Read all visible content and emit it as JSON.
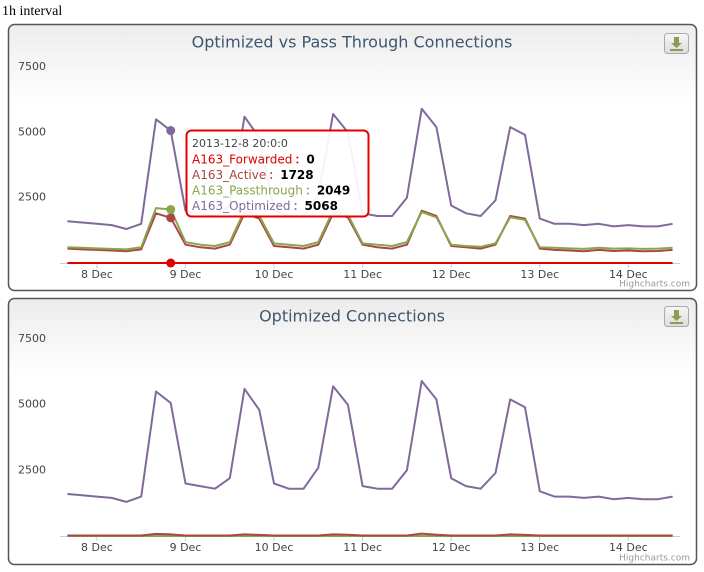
{
  "caption": "1h interval",
  "chart_data": [
    {
      "type": "line",
      "title": "Optimized vs Pass Through Connections",
      "credits": "Highcharts.com",
      "x": [
        "2013-12-07 16:00",
        "2013-12-07 20:00",
        "2013-12-08 00:00",
        "2013-12-08 04:00",
        "2013-12-08 08:00",
        "2013-12-08 12:00",
        "2013-12-08 16:00",
        "2013-12-08 20:00",
        "2013-12-09 00:00",
        "2013-12-09 04:00",
        "2013-12-09 08:00",
        "2013-12-09 12:00",
        "2013-12-09 16:00",
        "2013-12-09 20:00",
        "2013-12-10 00:00",
        "2013-12-10 04:00",
        "2013-12-10 08:00",
        "2013-12-10 12:00",
        "2013-12-10 16:00",
        "2013-12-10 20:00",
        "2013-12-11 00:00",
        "2013-12-11 04:00",
        "2013-12-11 08:00",
        "2013-12-11 12:00",
        "2013-12-11 16:00",
        "2013-12-11 20:00",
        "2013-12-12 00:00",
        "2013-12-12 04:00",
        "2013-12-12 08:00",
        "2013-12-12 12:00",
        "2013-12-12 16:00",
        "2013-12-12 20:00",
        "2013-12-13 00:00",
        "2013-12-13 04:00",
        "2013-12-13 08:00",
        "2013-12-13 12:00",
        "2013-12-13 16:00",
        "2013-12-13 20:00",
        "2013-12-14 00:00",
        "2013-12-14 04:00",
        "2013-12-14 08:00",
        "2013-12-14 12:00"
      ],
      "xlim": [
        "2013-12-07 14:00",
        "2013-12-14 14:00"
      ],
      "xticks": [
        {
          "value": "2013-12-08 00:00",
          "label": "8 Dec"
        },
        {
          "value": "2013-12-09 00:00",
          "label": "9 Dec"
        },
        {
          "value": "2013-12-10 00:00",
          "label": "10 Dec"
        },
        {
          "value": "2013-12-11 00:00",
          "label": "11 Dec"
        },
        {
          "value": "2013-12-12 00:00",
          "label": "12 Dec"
        },
        {
          "value": "2013-12-13 00:00",
          "label": "13 Dec"
        },
        {
          "value": "2013-12-14 00:00",
          "label": "14 Dec"
        }
      ],
      "ylim": [
        0,
        7500
      ],
      "yticks": [
        2500,
        5000,
        7500
      ],
      "grid": false,
      "tooltip": {
        "header": "2013-12-8 20:0:0"
      },
      "series": [
        {
          "name": "A163_Forwarded",
          "color": "#e00000",
          "values": [
            0,
            0,
            0,
            0,
            0,
            0,
            0,
            0,
            0,
            0,
            0,
            0,
            0,
            0,
            0,
            0,
            0,
            0,
            0,
            0,
            0,
            0,
            0,
            0,
            0,
            0,
            0,
            0,
            0,
            0,
            0,
            0,
            0,
            0,
            0,
            0,
            0,
            0,
            0,
            0,
            0,
            0
          ]
        },
        {
          "name": "A163_Active",
          "color": "#aa4643",
          "values": [
            550,
            520,
            500,
            480,
            450,
            520,
            1900,
            1728,
            700,
            600,
            550,
            700,
            1900,
            1700,
            650,
            600,
            550,
            700,
            1900,
            1750,
            700,
            600,
            550,
            700,
            2000,
            1800,
            650,
            600,
            550,
            700,
            1800,
            1700,
            550,
            500,
            480,
            450,
            500,
            460,
            480,
            450,
            460,
            500
          ]
        },
        {
          "name": "A163_Passthrough",
          "color": "#89a54e",
          "values": [
            600,
            580,
            560,
            540,
            520,
            600,
            2100,
            2049,
            800,
            700,
            650,
            800,
            2000,
            1800,
            750,
            700,
            650,
            800,
            2000,
            1850,
            750,
            700,
            650,
            800,
            1950,
            1750,
            700,
            650,
            620,
            750,
            1750,
            1650,
            600,
            580,
            560,
            540,
            580,
            550,
            560,
            540,
            550,
            580
          ]
        },
        {
          "name": "A163_Optimized",
          "color": "#80699b",
          "values": [
            1600,
            1550,
            1500,
            1450,
            1300,
            1500,
            5500,
            5068,
            2000,
            1900,
            1800,
            2200,
            5600,
            4800,
            2000,
            1800,
            1800,
            2600,
            5700,
            5000,
            1900,
            1800,
            1800,
            2500,
            5900,
            5200,
            2200,
            1900,
            1800,
            2400,
            5200,
            4900,
            1700,
            1500,
            1500,
            1450,
            1500,
            1400,
            1450,
            1400,
            1400,
            1500
          ]
        }
      ]
    },
    {
      "type": "line",
      "title": "Optimized Connections",
      "credits": "Highcharts.com",
      "x": [
        "2013-12-07 16:00",
        "2013-12-07 20:00",
        "2013-12-08 00:00",
        "2013-12-08 04:00",
        "2013-12-08 08:00",
        "2013-12-08 12:00",
        "2013-12-08 16:00",
        "2013-12-08 20:00",
        "2013-12-09 00:00",
        "2013-12-09 04:00",
        "2013-12-09 08:00",
        "2013-12-09 12:00",
        "2013-12-09 16:00",
        "2013-12-09 20:00",
        "2013-12-10 00:00",
        "2013-12-10 04:00",
        "2013-12-10 08:00",
        "2013-12-10 12:00",
        "2013-12-10 16:00",
        "2013-12-10 20:00",
        "2013-12-11 00:00",
        "2013-12-11 04:00",
        "2013-12-11 08:00",
        "2013-12-11 12:00",
        "2013-12-11 16:00",
        "2013-12-11 20:00",
        "2013-12-12 00:00",
        "2013-12-12 04:00",
        "2013-12-12 08:00",
        "2013-12-12 12:00",
        "2013-12-12 16:00",
        "2013-12-12 20:00",
        "2013-12-13 00:00",
        "2013-12-13 04:00",
        "2013-12-13 08:00",
        "2013-12-13 12:00",
        "2013-12-13 16:00",
        "2013-12-13 20:00",
        "2013-12-14 00:00",
        "2013-12-14 04:00",
        "2013-12-14 08:00",
        "2013-12-14 12:00"
      ],
      "xlim": [
        "2013-12-07 14:00",
        "2013-12-14 14:00"
      ],
      "xticks": [
        {
          "value": "2013-12-08 00:00",
          "label": "8 Dec"
        },
        {
          "value": "2013-12-09 00:00",
          "label": "9 Dec"
        },
        {
          "value": "2013-12-10 00:00",
          "label": "10 Dec"
        },
        {
          "value": "2013-12-11 00:00",
          "label": "11 Dec"
        },
        {
          "value": "2013-12-12 00:00",
          "label": "12 Dec"
        },
        {
          "value": "2013-12-13 00:00",
          "label": "13 Dec"
        },
        {
          "value": "2013-12-14 00:00",
          "label": "14 Dec"
        }
      ],
      "ylim": [
        0,
        7500
      ],
      "yticks": [
        2500,
        5000,
        7500
      ],
      "grid": false,
      "series": [
        {
          "color": "#89a54e",
          "values": [
            0,
            0,
            0,
            0,
            0,
            0,
            0,
            0,
            0,
            0,
            0,
            0,
            0,
            0,
            0,
            0,
            0,
            0,
            0,
            0,
            0,
            0,
            0,
            0,
            0,
            0,
            0,
            0,
            0,
            0,
            0,
            0,
            0,
            0,
            0,
            0,
            0,
            0,
            0,
            0,
            0,
            0
          ]
        },
        {
          "color": "#aa4643",
          "values": [
            20,
            20,
            20,
            20,
            20,
            20,
            80,
            60,
            20,
            20,
            20,
            20,
            60,
            40,
            20,
            20,
            20,
            20,
            60,
            50,
            20,
            20,
            20,
            20,
            90,
            50,
            20,
            20,
            20,
            20,
            60,
            40,
            20,
            20,
            20,
            20,
            20,
            20,
            20,
            20,
            20,
            20
          ]
        },
        {
          "color": "#80699b",
          "values": [
            1600,
            1550,
            1500,
            1450,
            1300,
            1500,
            5500,
            5068,
            2000,
            1900,
            1800,
            2200,
            5600,
            4800,
            2000,
            1800,
            1800,
            2600,
            5700,
            5000,
            1900,
            1800,
            1800,
            2500,
            5900,
            5200,
            2200,
            1900,
            1800,
            2400,
            5200,
            4900,
            1700,
            1500,
            1500,
            1450,
            1500,
            1400,
            1450,
            1400,
            1400,
            1500
          ]
        }
      ]
    }
  ]
}
